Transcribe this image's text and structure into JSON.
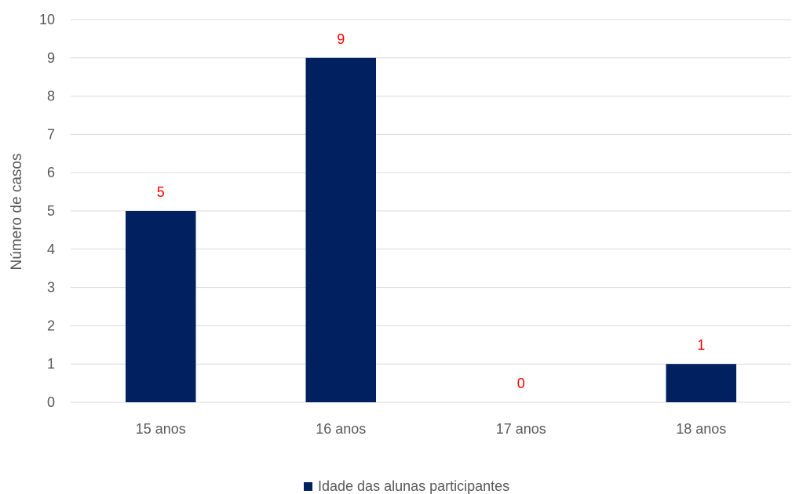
{
  "chart_data": {
    "type": "bar",
    "title": "",
    "xlabel": "",
    "ylabel": "Número de casos",
    "categories": [
      "15 anos",
      "16 anos",
      "17 anos",
      "18 anos"
    ],
    "series": [
      {
        "name": "Idade das alunas participantes",
        "values": [
          5,
          9,
          0,
          1
        ]
      }
    ],
    "ylim": [
      0,
      10
    ],
    "yticks": [
      0,
      1,
      2,
      3,
      4,
      5,
      6,
      7,
      8,
      9,
      10
    ],
    "grid": true,
    "legend_position": "bottom",
    "colors": {
      "bar": "#002060",
      "data_label": "#ff0000",
      "grid": "#d9d9d9",
      "text": "#595959"
    }
  }
}
